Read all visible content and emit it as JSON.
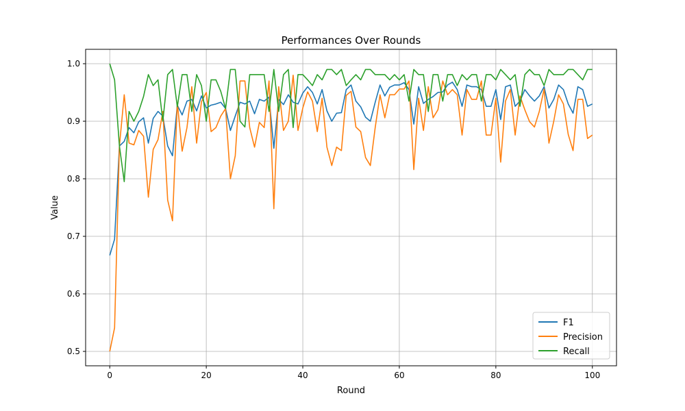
{
  "chart_data": {
    "type": "line",
    "title": "Performances Over Rounds",
    "xlabel": "Round",
    "ylabel": "Value",
    "xlim": [
      -5,
      105
    ],
    "ylim": [
      0.475,
      1.025
    ],
    "xticks": [
      0,
      20,
      40,
      60,
      80,
      100
    ],
    "yticks": [
      0.5,
      0.6,
      0.7,
      0.8,
      0.9,
      1.0
    ],
    "ytick_labels": [
      "0.5",
      "0.6",
      "0.7",
      "0.8",
      "0.9",
      "1.0"
    ],
    "grid": true,
    "legend_position": "lower-right",
    "x": [
      0,
      1,
      2,
      3,
      4,
      5,
      6,
      7,
      8,
      9,
      10,
      11,
      12,
      13,
      14,
      15,
      16,
      17,
      18,
      19,
      20,
      21,
      22,
      23,
      24,
      25,
      26,
      27,
      28,
      29,
      30,
      31,
      32,
      33,
      34,
      35,
      36,
      37,
      38,
      39,
      40,
      41,
      42,
      43,
      44,
      45,
      46,
      47,
      48,
      49,
      50,
      51,
      52,
      53,
      54,
      55,
      56,
      57,
      58,
      59,
      60,
      61,
      62,
      63,
      64,
      65,
      66,
      67,
      68,
      69,
      70,
      71,
      72,
      73,
      74,
      75,
      76,
      77,
      78,
      79,
      80,
      81,
      82,
      83,
      84,
      85,
      86,
      87,
      88,
      89,
      90,
      91,
      92,
      93,
      94,
      95,
      96,
      97,
      98,
      99,
      100
    ],
    "series": [
      {
        "name": "F1",
        "color": "#1f77b4",
        "values": [
          0.667,
          0.695,
          0.857,
          0.865,
          0.889,
          0.88,
          0.899,
          0.906,
          0.862,
          0.905,
          0.917,
          0.909,
          0.857,
          0.84,
          0.928,
          0.911,
          0.935,
          0.938,
          0.918,
          0.944,
          0.923,
          0.928,
          0.93,
          0.933,
          0.922,
          0.884,
          0.909,
          0.933,
          0.93,
          0.935,
          0.913,
          0.938,
          0.935,
          0.942,
          0.853,
          0.938,
          0.929,
          0.946,
          0.933,
          0.93,
          0.949,
          0.96,
          0.95,
          0.93,
          0.955,
          0.918,
          0.9,
          0.914,
          0.915,
          0.955,
          0.963,
          0.935,
          0.925,
          0.907,
          0.9,
          0.933,
          0.963,
          0.944,
          0.959,
          0.963,
          0.963,
          0.967,
          0.955,
          0.895,
          0.96,
          0.931,
          0.938,
          0.943,
          0.95,
          0.951,
          0.963,
          0.968,
          0.955,
          0.926,
          0.963,
          0.96,
          0.96,
          0.955,
          0.926,
          0.926,
          0.955,
          0.903,
          0.96,
          0.963,
          0.926,
          0.935,
          0.955,
          0.944,
          0.935,
          0.944,
          0.96,
          0.923,
          0.938,
          0.963,
          0.955,
          0.93,
          0.914,
          0.96,
          0.955,
          0.926,
          0.93
        ]
      },
      {
        "name": "Precision",
        "color": "#ff7f0e",
        "values": [
          0.5,
          0.541,
          0.857,
          0.946,
          0.862,
          0.859,
          0.884,
          0.874,
          0.768,
          0.851,
          0.868,
          0.917,
          0.763,
          0.727,
          0.932,
          0.848,
          0.889,
          0.96,
          0.862,
          0.934,
          0.95,
          0.882,
          0.889,
          0.909,
          0.922,
          0.8,
          0.84,
          0.97,
          0.97,
          0.889,
          0.855,
          0.898,
          0.889,
          0.97,
          0.748,
          0.96,
          0.884,
          0.9,
          0.98,
          0.884,
          0.923,
          0.951,
          0.935,
          0.882,
          0.94,
          0.855,
          0.823,
          0.855,
          0.849,
          0.945,
          0.952,
          0.89,
          0.882,
          0.837,
          0.823,
          0.889,
          0.946,
          0.906,
          0.946,
          0.946,
          0.956,
          0.956,
          0.97,
          0.816,
          0.94,
          0.884,
          0.96,
          0.906,
          0.92,
          0.97,
          0.946,
          0.955,
          0.946,
          0.876,
          0.955,
          0.938,
          0.938,
          0.97,
          0.876,
          0.876,
          0.94,
          0.829,
          0.935,
          0.955,
          0.876,
          0.944,
          0.92,
          0.899,
          0.89,
          0.917,
          0.956,
          0.862,
          0.9,
          0.946,
          0.93,
          0.877,
          0.849,
          0.938,
          0.938,
          0.87,
          0.876
        ]
      },
      {
        "name": "Recall",
        "color": "#2ca02c",
        "values": [
          1.0,
          0.972,
          0.857,
          0.795,
          0.917,
          0.9,
          0.917,
          0.943,
          0.981,
          0.962,
          0.972,
          0.9,
          0.981,
          0.99,
          0.925,
          0.981,
          0.981,
          0.917,
          0.981,
          0.962,
          0.9,
          0.972,
          0.972,
          0.952,
          0.922,
          0.99,
          0.99,
          0.9,
          0.89,
          0.981,
          0.981,
          0.981,
          0.981,
          0.917,
          0.99,
          0.917,
          0.981,
          0.99,
          0.889,
          0.981,
          0.981,
          0.972,
          0.962,
          0.981,
          0.972,
          0.99,
          0.99,
          0.981,
          0.99,
          0.962,
          0.972,
          0.981,
          0.972,
          0.99,
          0.99,
          0.981,
          0.981,
          0.981,
          0.972,
          0.981,
          0.972,
          0.981,
          0.935,
          0.99,
          0.981,
          0.981,
          0.917,
          0.981,
          0.981,
          0.935,
          0.981,
          0.981,
          0.962,
          0.981,
          0.972,
          0.981,
          0.981,
          0.935,
          0.981,
          0.981,
          0.972,
          0.99,
          0.981,
          0.972,
          0.981,
          0.926,
          0.981,
          0.99,
          0.981,
          0.981,
          0.962,
          0.99,
          0.981,
          0.981,
          0.981,
          0.99,
          0.99,
          0.981,
          0.972,
          0.99,
          0.99
        ]
      }
    ]
  }
}
